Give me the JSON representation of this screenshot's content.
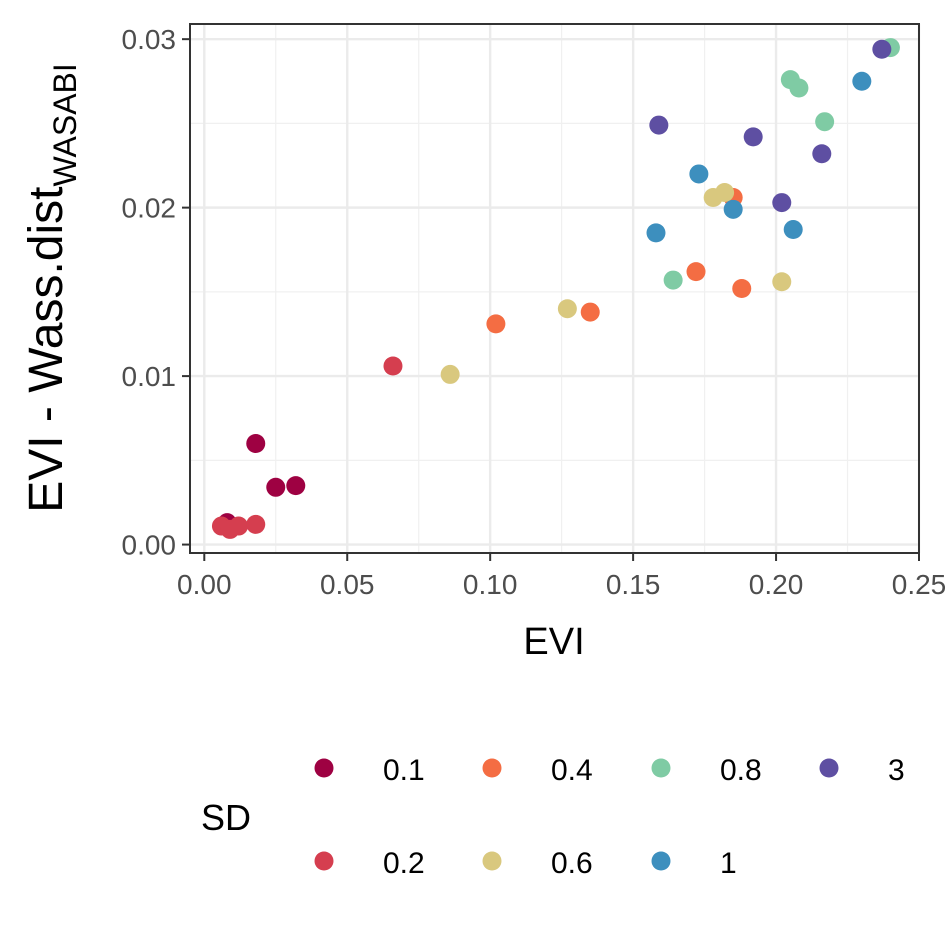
{
  "chart_data": {
    "type": "scatter",
    "title": "",
    "xlabel": "EVI",
    "ylabel": {
      "main": "EVI - Wass.dist",
      "subscript": "WASABI"
    },
    "xlim": [
      -0.005,
      0.25
    ],
    "ylim": [
      -0.0005,
      0.0309
    ],
    "x_ticks": [
      0.0,
      0.05,
      0.1,
      0.15,
      0.2,
      0.25
    ],
    "x_tick_labels": [
      "0.00",
      "0.05",
      "0.10",
      "0.15",
      "0.20",
      "0.25"
    ],
    "y_ticks": [
      0.0,
      0.01,
      0.02,
      0.03
    ],
    "y_tick_labels": [
      "0.00",
      "0.01",
      "0.02",
      "0.03"
    ],
    "grid": true,
    "legend": {
      "title": "SD",
      "position": "bottom"
    },
    "series": [
      {
        "name": "0.1",
        "color": "#9E0142",
        "x": [
          0.008,
          0.018,
          0.025,
          0.032
        ],
        "y": [
          0.0013,
          0.006,
          0.0034,
          0.0035
        ]
      },
      {
        "name": "0.2",
        "color": "#D53E4F",
        "x": [
          0.006,
          0.009,
          0.012,
          0.018,
          0.066
        ],
        "y": [
          0.0011,
          0.0009,
          0.0011,
          0.0012,
          0.0106
        ]
      },
      {
        "name": "0.4",
        "color": "#F46D43",
        "x": [
          0.102,
          0.135,
          0.172,
          0.185,
          0.188
        ],
        "y": [
          0.0131,
          0.0138,
          0.0162,
          0.0206,
          0.0152
        ]
      },
      {
        "name": "0.6",
        "color": "#D9C87E",
        "x": [
          0.086,
          0.127,
          0.178,
          0.182,
          0.202
        ],
        "y": [
          0.0101,
          0.014,
          0.0206,
          0.0209,
          0.0156
        ]
      },
      {
        "name": "0.8",
        "color": "#7FCBA4",
        "x": [
          0.164,
          0.205,
          0.208,
          0.217,
          0.24
        ],
        "y": [
          0.0157,
          0.0276,
          0.0271,
          0.0251,
          0.0295
        ]
      },
      {
        "name": "1",
        "color": "#3D8FBE",
        "x": [
          0.158,
          0.173,
          0.185,
          0.206,
          0.23
        ],
        "y": [
          0.0185,
          0.022,
          0.0199,
          0.0187,
          0.0275
        ]
      },
      {
        "name": "3",
        "color": "#5E4FA2",
        "x": [
          0.159,
          0.192,
          0.202,
          0.216,
          0.237
        ],
        "y": [
          0.0249,
          0.0242,
          0.0203,
          0.0232,
          0.0294
        ]
      }
    ]
  }
}
